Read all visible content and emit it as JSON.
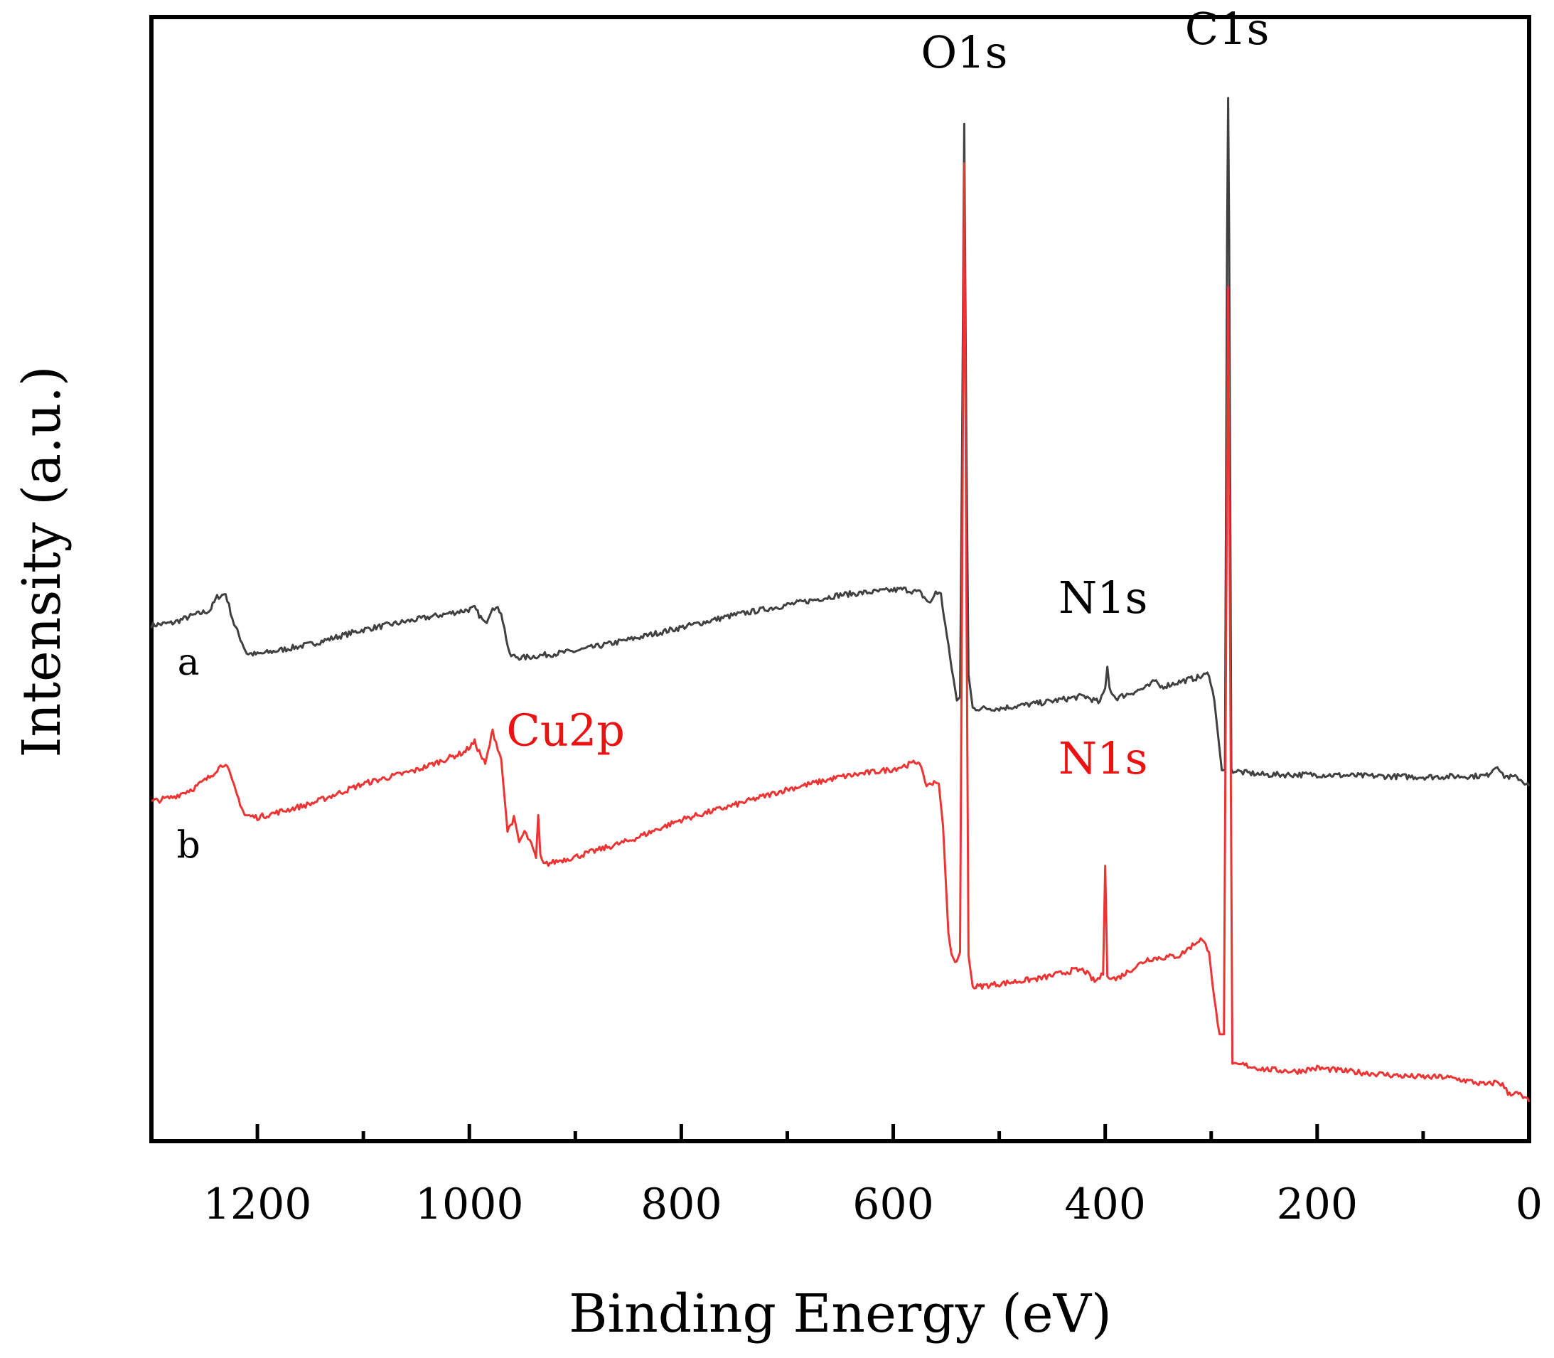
{
  "chart_data": {
    "type": "line",
    "title": "",
    "xlabel": "Binding Energy (eV)",
    "ylabel": "Intensity (a.u.)",
    "xlim": [
      1300,
      0
    ],
    "ylim": [
      0,
      1000
    ],
    "x_reversed": true,
    "xticks_major": [
      1200,
      1000,
      800,
      600,
      400,
      200,
      0
    ],
    "xticks_major_labels": [
      "1200",
      "1000",
      "800",
      "600",
      "400",
      "200",
      "0"
    ],
    "xticks_minor": [
      1100,
      900,
      700,
      500,
      300,
      100
    ],
    "yticks": [],
    "grid": false,
    "legend": "none",
    "colors": {
      "a": "#404040",
      "b": "#ee3333",
      "axis": "#000000",
      "label_a": "#000000",
      "label_b": "#ee1111"
    },
    "series": [
      {
        "name": "a",
        "color": "#404040",
        "points": [
          [
            1300,
            459
          ],
          [
            1280,
            461
          ],
          [
            1260,
            468
          ],
          [
            1245,
            472
          ],
          [
            1238,
            484
          ],
          [
            1230,
            487
          ],
          [
            1222,
            460
          ],
          [
            1210,
            434
          ],
          [
            1200,
            433
          ],
          [
            1150,
            442
          ],
          [
            1100,
            455
          ],
          [
            1050,
            464
          ],
          [
            1005,
            472
          ],
          [
            995,
            474
          ],
          [
            985,
            460
          ],
          [
            978,
            476
          ],
          [
            970,
            471
          ],
          [
            962,
            432
          ],
          [
            950,
            430
          ],
          [
            900,
            436
          ],
          [
            850,
            446
          ],
          [
            800,
            457
          ],
          [
            750,
            468
          ],
          [
            700,
            477
          ],
          [
            650,
            486
          ],
          [
            590,
            491
          ],
          [
            575,
            488
          ],
          [
            565,
            478
          ],
          [
            560,
            489
          ],
          [
            555,
            486
          ],
          [
            548,
            440
          ],
          [
            540,
            392
          ],
          [
            537,
            395
          ],
          [
            535,
            620
          ],
          [
            533,
            905
          ],
          [
            531,
            620
          ],
          [
            529,
            415
          ],
          [
            525,
            385
          ],
          [
            500,
            385
          ],
          [
            460,
            390
          ],
          [
            420,
            396
          ],
          [
            405,
            390
          ],
          [
            400,
            403
          ],
          [
            398,
            422
          ],
          [
            396,
            403
          ],
          [
            390,
            394
          ],
          [
            360,
            404
          ],
          [
            352,
            410
          ],
          [
            348,
            404
          ],
          [
            320,
            411
          ],
          [
            310,
            413
          ],
          [
            302,
            416
          ],
          [
            297,
            392
          ],
          [
            290,
            330
          ],
          [
            287,
            330
          ],
          [
            285,
            800
          ],
          [
            284,
            928
          ],
          [
            283,
            800
          ],
          [
            281,
            330
          ],
          [
            270,
            328
          ],
          [
            250,
            326
          ],
          [
            200,
            326
          ],
          [
            160,
            325
          ],
          [
            100,
            324
          ],
          [
            40,
            325
          ],
          [
            30,
            335
          ],
          [
            25,
            325
          ],
          [
            10,
            323
          ],
          [
            0,
            316
          ]
        ]
      },
      {
        "name": "b",
        "color": "#ee3333",
        "points": [
          [
            1300,
            302
          ],
          [
            1280,
            306
          ],
          [
            1260,
            314
          ],
          [
            1245,
            324
          ],
          [
            1238,
            331
          ],
          [
            1230,
            337
          ],
          [
            1222,
            315
          ],
          [
            1212,
            290
          ],
          [
            1200,
            288
          ],
          [
            1150,
            300
          ],
          [
            1100,
            318
          ],
          [
            1050,
            330
          ],
          [
            1005,
            346
          ],
          [
            995,
            355
          ],
          [
            985,
            335
          ],
          [
            978,
            365
          ],
          [
            970,
            340
          ],
          [
            964,
            276
          ],
          [
            958,
            287
          ],
          [
            953,
            266
          ],
          [
            948,
            275
          ],
          [
            943,
            267
          ],
          [
            937,
            252
          ],
          [
            935,
            290
          ],
          [
            933,
            255
          ],
          [
            930,
            246
          ],
          [
            900,
            253
          ],
          [
            850,
            267
          ],
          [
            800,
            286
          ],
          [
            750,
            299
          ],
          [
            700,
            313
          ],
          [
            650,
            324
          ],
          [
            600,
            331
          ],
          [
            575,
            338
          ],
          [
            570,
            317
          ],
          [
            560,
            319
          ],
          [
            557,
            318
          ],
          [
            553,
            280
          ],
          [
            548,
            185
          ],
          [
            545,
            165
          ],
          [
            540,
            160
          ],
          [
            537,
            168
          ],
          [
            535,
            500
          ],
          [
            533,
            870
          ],
          [
            531,
            500
          ],
          [
            529,
            165
          ],
          [
            525,
            137
          ],
          [
            500,
            140
          ],
          [
            460,
            145
          ],
          [
            430,
            152
          ],
          [
            420,
            152
          ],
          [
            410,
            142
          ],
          [
            402,
            148
          ],
          [
            400,
            245
          ],
          [
            398,
            148
          ],
          [
            390,
            144
          ],
          [
            360,
            162
          ],
          [
            330,
            165
          ],
          [
            310,
            180
          ],
          [
            302,
            170
          ],
          [
            297,
            125
          ],
          [
            292,
            95
          ],
          [
            288,
            95
          ],
          [
            285,
            600
          ],
          [
            284,
            760
          ],
          [
            283,
            600
          ],
          [
            280,
            67
          ],
          [
            270,
            68
          ],
          [
            250,
            64
          ],
          [
            220,
            62
          ],
          [
            200,
            65
          ],
          [
            170,
            62
          ],
          [
            120,
            58
          ],
          [
            100,
            57
          ],
          [
            80,
            57
          ],
          [
            60,
            54
          ],
          [
            40,
            50
          ],
          [
            30,
            53
          ],
          [
            25,
            50
          ],
          [
            20,
            43
          ],
          [
            10,
            42
          ],
          [
            0,
            35
          ]
        ]
      }
    ],
    "annotations": [
      {
        "text": "O1s",
        "x": 533,
        "y": 955,
        "color": "#000000",
        "anchor": "middle"
      },
      {
        "text": "C1s",
        "x": 285,
        "y": 976,
        "color": "#000000",
        "anchor": "middle"
      },
      {
        "text": "N1s",
        "x": 402,
        "y": 470,
        "color": "#000000",
        "anchor": "middle"
      },
      {
        "text": "N1s",
        "x": 402,
        "y": 327,
        "color": "#ee1111",
        "anchor": "middle"
      },
      {
        "text": "Cu2p",
        "x": 965,
        "y": 352,
        "color": "#ee1111",
        "anchor": "start"
      },
      {
        "text": "a",
        "x": 1265,
        "y": 415,
        "color": "#000000",
        "anchor": "middle"
      },
      {
        "text": "b",
        "x": 1265,
        "y": 252,
        "color": "#000000",
        "anchor": "middle"
      }
    ]
  }
}
